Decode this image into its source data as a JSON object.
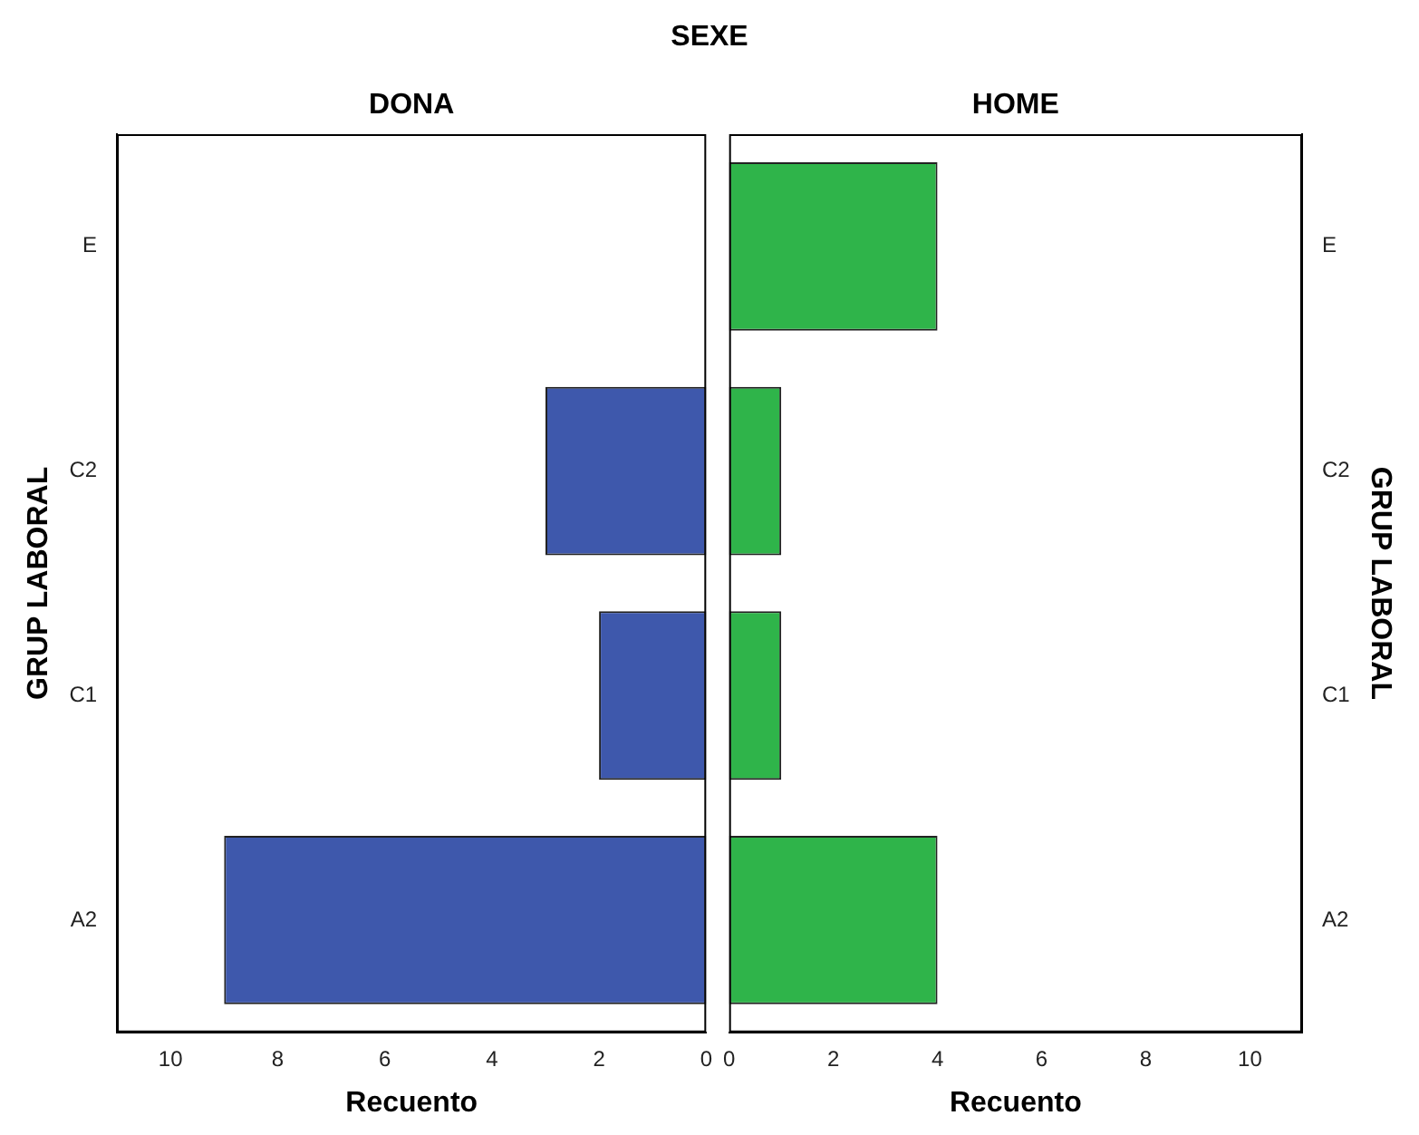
{
  "chart_data": [
    {
      "type": "bar",
      "orientation": "horizontal",
      "title": "SEXE",
      "subtitle": "DONA",
      "xlabel": "Recuento",
      "ylabel": "GRUP LABORAL",
      "categories": [
        "E",
        "C2",
        "C1",
        "A2"
      ],
      "series": [
        {
          "color": "#3e58ac",
          "values": [
            0,
            3,
            2,
            9
          ]
        }
      ],
      "xlim": [
        11,
        0
      ],
      "xticks": [
        10,
        8,
        6,
        4,
        2,
        0
      ],
      "grid": false,
      "legend": false
    },
    {
      "type": "bar",
      "orientation": "horizontal",
      "subtitle": "HOME",
      "xlabel": "Recuento",
      "ylabel": "GRUP LABORAL",
      "categories": [
        "E",
        "C2",
        "C1",
        "A2"
      ],
      "series": [
        {
          "color": "#2fb44a",
          "values": [
            4,
            1,
            1,
            4
          ]
        }
      ],
      "xlim": [
        0,
        11
      ],
      "xticks": [
        0,
        2,
        4,
        6,
        8,
        10
      ],
      "grid": false,
      "legend": false
    }
  ]
}
